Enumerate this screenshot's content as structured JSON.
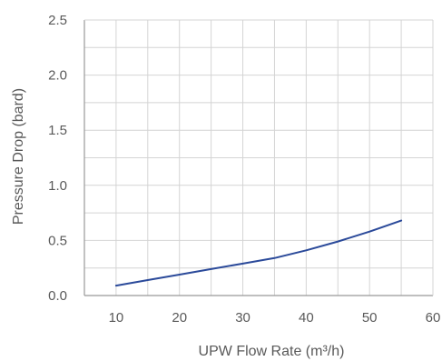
{
  "chart_data": {
    "type": "line",
    "title": "",
    "xlabel": "UPW Flow Rate (m³/h)",
    "ylabel": "Pressure Drop (bard)",
    "xlim": [
      5,
      60
    ],
    "ylim": [
      0.0,
      2.5
    ],
    "x_ticks": [
      "10",
      "20",
      "30",
      "40",
      "50",
      "60"
    ],
    "y_ticks": [
      "0.0",
      "0.5",
      "1.0",
      "1.5",
      "2.0",
      "2.5"
    ],
    "grid": true,
    "legend": "none",
    "series": [
      {
        "color": "#2b4a9a",
        "x": [
          10,
          15,
          20,
          25,
          30,
          35,
          40,
          45,
          50,
          55
        ],
        "y": [
          0.09,
          0.14,
          0.19,
          0.24,
          0.29,
          0.34,
          0.41,
          0.49,
          0.58,
          0.68
        ]
      }
    ],
    "colors": {
      "axis": "#999999",
      "grid": "#d4d4d4",
      "text": "#595959"
    }
  }
}
